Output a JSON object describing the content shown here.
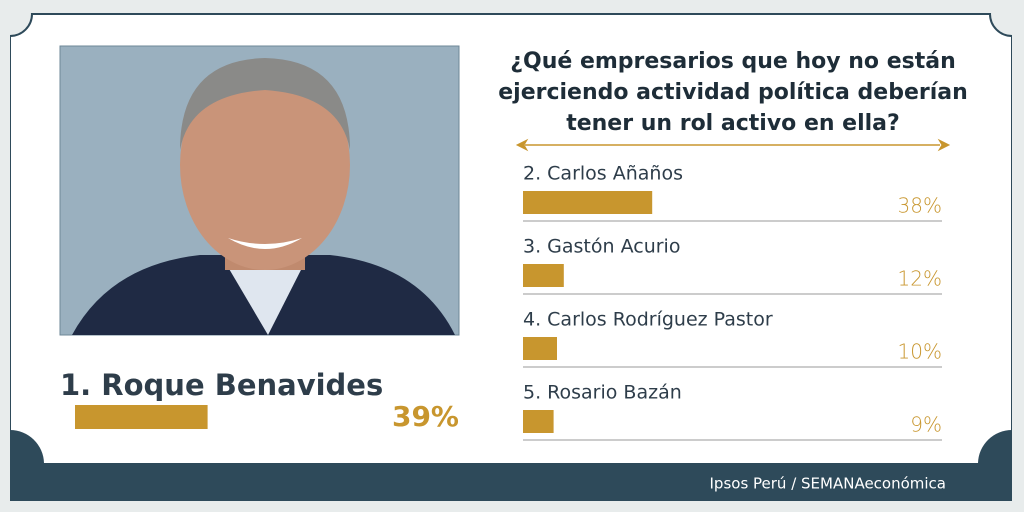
{
  "chart_data": {
    "type": "bar",
    "title": "¿Qué empresarios que hoy no están ejerciendo actividad política deberían tener un rol activo en ella?",
    "categories": [
      "1. Roque Benavides",
      "2. Carlos Añaños",
      "3. Gastón Acurio",
      "4. Carlos Rodríguez Pastor",
      "5. Rosario Bazán"
    ],
    "values": [
      39,
      38,
      12,
      10,
      9
    ],
    "value_labels": [
      "39%",
      "38%",
      "12%",
      "10%",
      "9%"
    ],
    "color": "#c8962e",
    "source": "Ipsos Perú / SEMANAeconómica"
  }
}
